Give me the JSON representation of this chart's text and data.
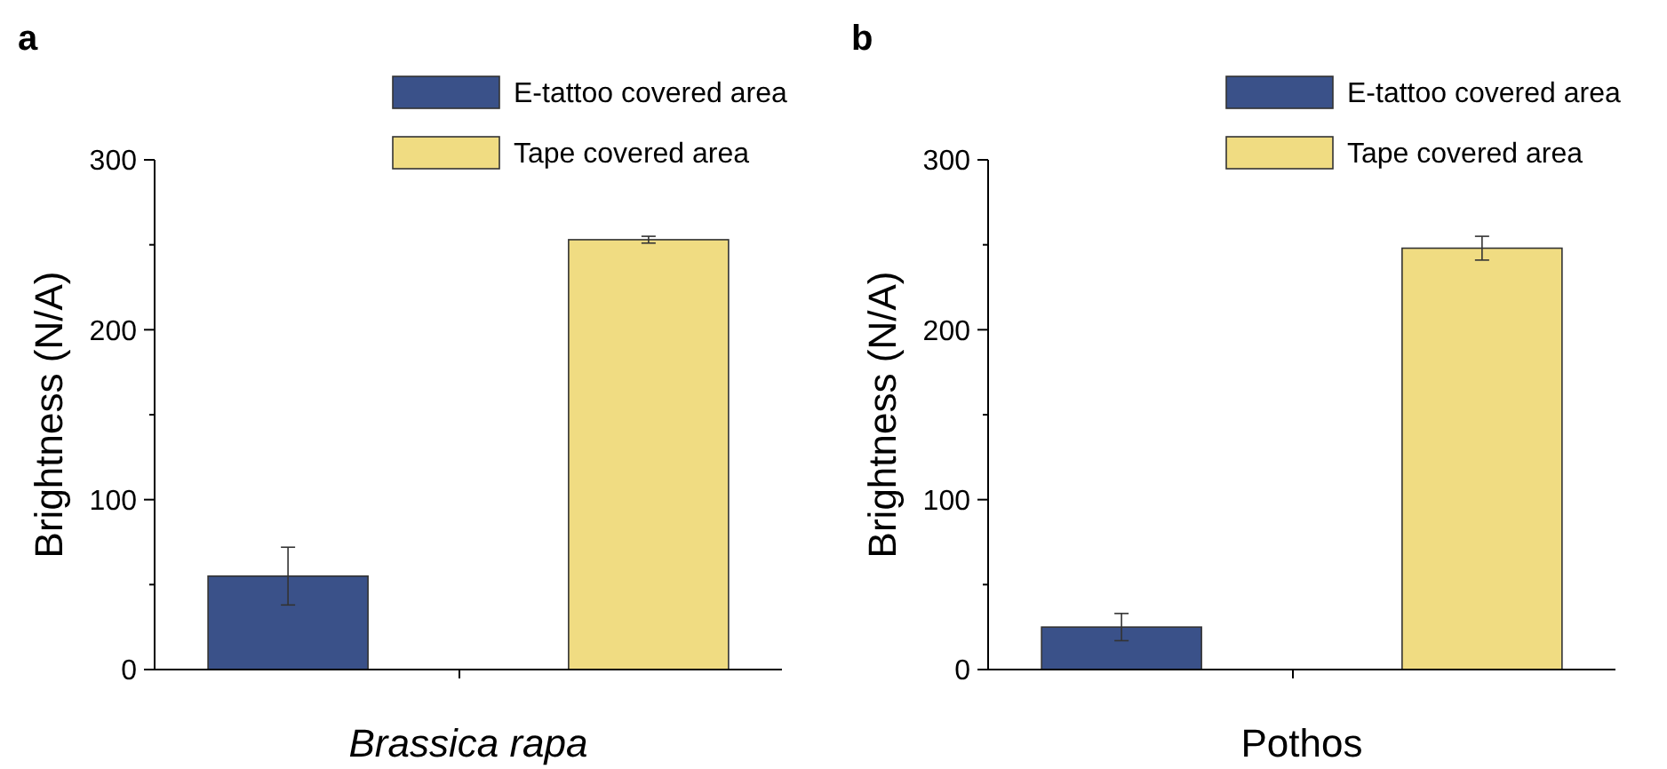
{
  "chart_data": [
    {
      "type": "bar",
      "title": "a",
      "xlabel": "Brassica rapa",
      "ylabel": "Brightness (N/A)",
      "categories": [
        null,
        null
      ],
      "series": [
        {
          "name": "E-tattoo covered area",
          "color": "#3a5189",
          "values": [
            55,
            null
          ],
          "errors": [
            17,
            null
          ]
        },
        {
          "name": "Tape covered area",
          "color": "#f0dc82",
          "values": [
            null,
            253
          ],
          "errors": [
            null,
            2
          ]
        }
      ],
      "ylim": [
        0,
        300
      ],
      "yticks": [
        0,
        100,
        200,
        300
      ],
      "legend": "top",
      "grid": false
    },
    {
      "type": "bar",
      "title": "b",
      "xlabel": "Pothos",
      "ylabel": "Brightness (N/A)",
      "categories": [
        null,
        null
      ],
      "series": [
        {
          "name": "E-tattoo covered area",
          "color": "#3a5189",
          "values": [
            25,
            null
          ],
          "errors": [
            8,
            null
          ]
        },
        {
          "name": "Tape covered area",
          "color": "#f0dc82",
          "values": [
            null,
            248
          ],
          "errors": [
            null,
            7
          ]
        }
      ],
      "ylim": [
        0,
        300
      ],
      "yticks": [
        0,
        100,
        200,
        300
      ],
      "legend": "top",
      "grid": false
    }
  ]
}
